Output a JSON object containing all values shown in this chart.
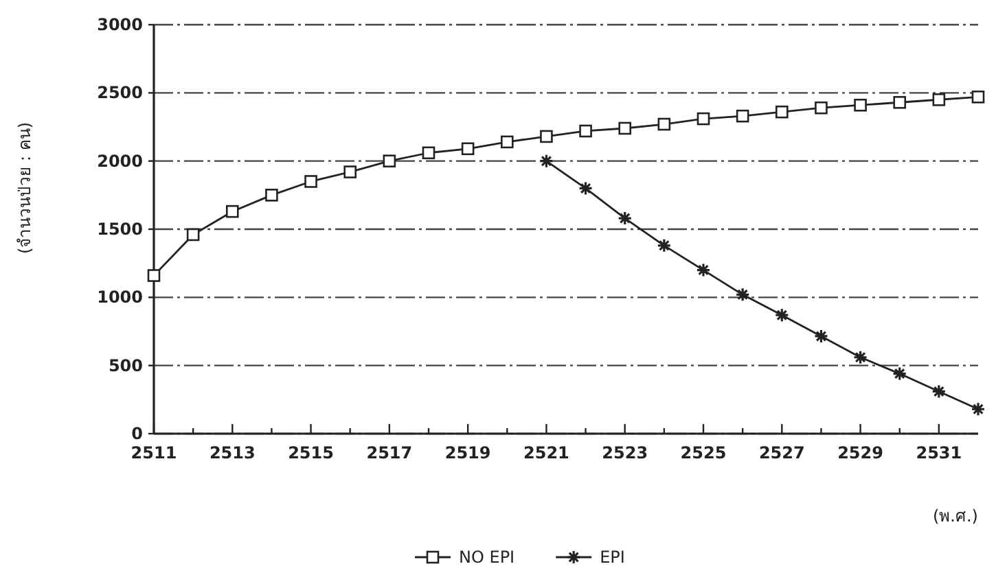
{
  "chart_data": {
    "type": "line",
    "ylabel": "(จำนวนป่วย : คน)",
    "xlabel": "(พ.ศ.)",
    "x": [
      2511,
      2512,
      2513,
      2514,
      2515,
      2516,
      2517,
      2518,
      2519,
      2520,
      2521,
      2522,
      2523,
      2524,
      2525,
      2526,
      2527,
      2528,
      2529,
      2530,
      2531,
      2532
    ],
    "series": [
      {
        "name": "NO EPI",
        "color": "#222222",
        "marker": "square",
        "values": [
          1160,
          1460,
          1630,
          1750,
          1850,
          1920,
          2000,
          2060,
          2090,
          2140,
          2180,
          2220,
          2240,
          2270,
          2310,
          2330,
          2360,
          2390,
          2410,
          2430,
          2450,
          2470
        ]
      },
      {
        "name": "EPI",
        "color": "#222222",
        "marker": "cross",
        "values": [
          null,
          null,
          null,
          null,
          null,
          null,
          null,
          null,
          null,
          null,
          2000,
          1800,
          1580,
          1380,
          1200,
          1020,
          870,
          715,
          560,
          440,
          310,
          180
        ]
      }
    ],
    "xlim": [
      2511,
      2532
    ],
    "xticks": [
      2511,
      {
        "value": 2512,
        "label": null
      },
      2513,
      {
        "value": 2514,
        "label": null
      },
      2515,
      {
        "value": 2516,
        "label": null
      },
      2517,
      {
        "value": 2518,
        "label": null
      },
      2519,
      {
        "value": 2520,
        "label": null
      },
      2521,
      {
        "value": 2522,
        "label": null
      },
      2523,
      {
        "value": 2524,
        "label": null
      },
      2525,
      {
        "value": 2526,
        "label": null
      },
      2527,
      {
        "value": 2528,
        "label": null
      },
      2529,
      {
        "value": 2530,
        "label": null
      },
      2531
    ],
    "ylim": [
      0,
      3000
    ],
    "yticks": [
      0,
      500,
      1000,
      1500,
      2000,
      2500,
      3000
    ],
    "grid": "y",
    "legend": "bottom"
  }
}
